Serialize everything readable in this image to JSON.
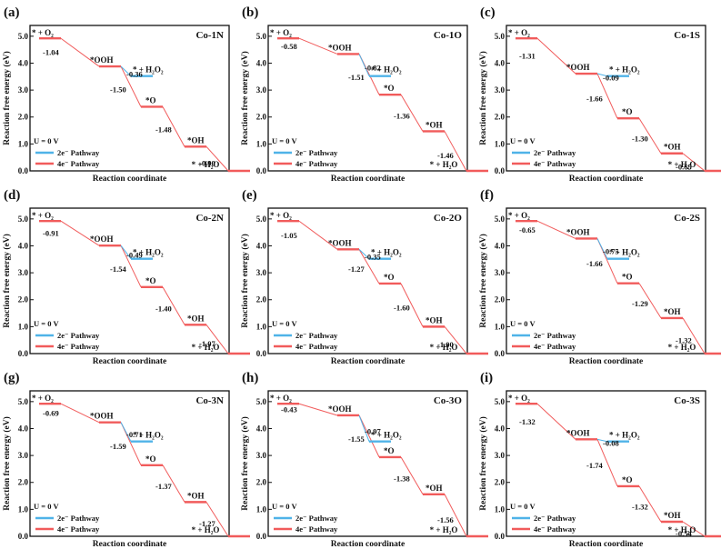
{
  "figure": {
    "ylabel": "Reaction free energy (eV)",
    "xlabel": "Reaction coordinate",
    "yticks": [
      "0.0",
      "1.0",
      "2.0",
      "3.0",
      "4.0",
      "5.0"
    ],
    "potential_label": "U = 0 V",
    "legend": [
      "2e⁻ Pathway",
      "4e⁻ Pathway"
    ],
    "colors": {
      "two_e": "#4fb3e8",
      "four_e": "#f15b5b",
      "axis": "#111111"
    },
    "species": {
      "o2": "* + O₂",
      "ooh": "*OOH",
      "h2o2": "* + H₂O₂",
      "o": "*O",
      "oh": "*OH",
      "h2o": "* + H₂O"
    }
  },
  "chart_data": [
    {
      "letter": "(a)",
      "name": "Co-1N",
      "type": "line",
      "ylim": [
        0,
        5.4
      ],
      "levels": [
        4.92,
        3.88,
        2.38,
        0.9,
        0.0
      ],
      "h2o2": 3.52,
      "deltas": [
        "-1.04",
        "-0.36",
        "-1.50",
        "-1.48",
        "-0.90"
      ]
    },
    {
      "letter": "(b)",
      "name": "Co-1O",
      "type": "line",
      "ylim": [
        0,
        5.4
      ],
      "levels": [
        4.92,
        4.34,
        2.83,
        1.47,
        0.0
      ],
      "h2o2": 3.52,
      "deltas": [
        "-0.58",
        "-0.82",
        "-1.51",
        "-1.36",
        "-1.46"
      ]
    },
    {
      "letter": "(c)",
      "name": "Co-1S",
      "type": "line",
      "ylim": [
        0,
        5.4
      ],
      "levels": [
        4.92,
        3.61,
        1.95,
        0.65,
        0.0
      ],
      "h2o2": 3.52,
      "deltas": [
        "-1.31",
        "-0.09",
        "-1.66",
        "-1.30",
        "-0.65"
      ]
    },
    {
      "letter": "(d)",
      "name": "Co-2N",
      "type": "line",
      "ylim": [
        0,
        5.4
      ],
      "levels": [
        4.92,
        4.01,
        2.47,
        1.07,
        0.0
      ],
      "h2o2": 3.52,
      "deltas": [
        "-0.91",
        "-0.49",
        "-1.54",
        "-1.40",
        "-1.07"
      ]
    },
    {
      "letter": "(e)",
      "name": "Co-2O",
      "type": "line",
      "ylim": [
        0,
        5.4
      ],
      "levels": [
        4.92,
        3.87,
        2.6,
        1.0,
        0.0
      ],
      "h2o2": 3.52,
      "deltas": [
        "-1.05",
        "-0.35",
        "-1.27",
        "-1.60",
        "-1.00"
      ]
    },
    {
      "letter": "(f)",
      "name": "Co-2S",
      "type": "line",
      "ylim": [
        0,
        5.4
      ],
      "levels": [
        4.92,
        4.27,
        2.61,
        1.32,
        0.0
      ],
      "h2o2": 3.52,
      "deltas": [
        "-0.65",
        "-0.75",
        "-1.66",
        "-1.29",
        "-1.32"
      ]
    },
    {
      "letter": "(g)",
      "name": "Co-3N",
      "type": "line",
      "ylim": [
        0,
        5.4
      ],
      "levels": [
        4.92,
        4.23,
        2.64,
        1.27,
        0.0
      ],
      "h2o2": 3.52,
      "deltas": [
        "-0.69",
        "-0.71",
        "-1.59",
        "-1.37",
        "-1.27"
      ]
    },
    {
      "letter": "(h)",
      "name": "Co-3O",
      "type": "line",
      "ylim": [
        0,
        5.4
      ],
      "levels": [
        4.92,
        4.49,
        2.94,
        1.56,
        0.0
      ],
      "h2o2": 3.52,
      "deltas": [
        "-0.43",
        "-0.97",
        "-1.55",
        "-1.38",
        "-1.56"
      ]
    },
    {
      "letter": "(i)",
      "name": "Co-3S",
      "type": "line",
      "ylim": [
        0,
        5.4
      ],
      "levels": [
        4.92,
        3.6,
        1.86,
        0.54,
        0.0
      ],
      "h2o2": 3.52,
      "deltas": [
        "-1.32",
        "-0.08",
        "-1.74",
        "-1.32",
        "-0.54"
      ]
    }
  ]
}
